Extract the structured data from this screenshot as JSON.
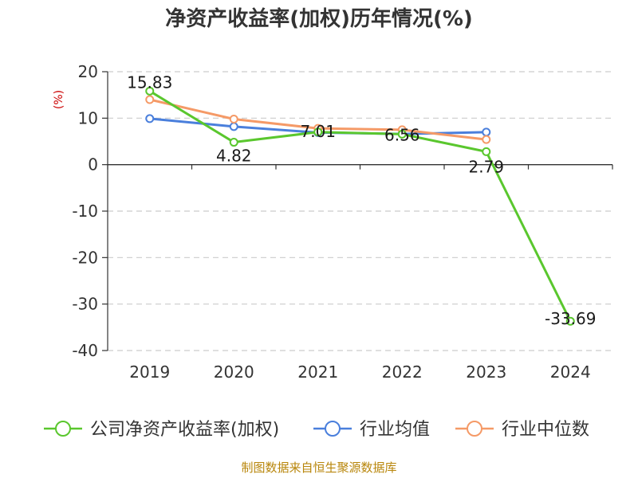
{
  "chart_data": {
    "type": "line",
    "title": "净资产收益率(加权)历年情况(%)",
    "unit_label": "(%)",
    "categories": [
      "2019",
      "2020",
      "2021",
      "2022",
      "2023",
      "2024"
    ],
    "ylim": [
      -40,
      20
    ],
    "yticks": [
      20,
      10,
      0,
      -10,
      -20,
      -30,
      -40
    ],
    "grid": true,
    "legend_position": "bottom",
    "series": [
      {
        "name": "公司净资产收益率(加权)",
        "color": "#5ac72e",
        "values": [
          15.83,
          4.82,
          7.01,
          6.56,
          2.79,
          -33.69
        ],
        "labels": [
          "15.83",
          "4.82",
          "7.01",
          "6.56",
          "2.79",
          "-33.69"
        ]
      },
      {
        "name": "行业均值",
        "color": "#4a7fdc",
        "values": [
          9.9,
          8.2,
          6.9,
          6.6,
          7.0,
          null
        ]
      },
      {
        "name": "行业中位数",
        "color": "#f59a67",
        "values": [
          14.0,
          9.8,
          7.8,
          7.5,
          5.4,
          null
        ]
      }
    ],
    "source": "制图数据来自恒生聚源数据库"
  }
}
